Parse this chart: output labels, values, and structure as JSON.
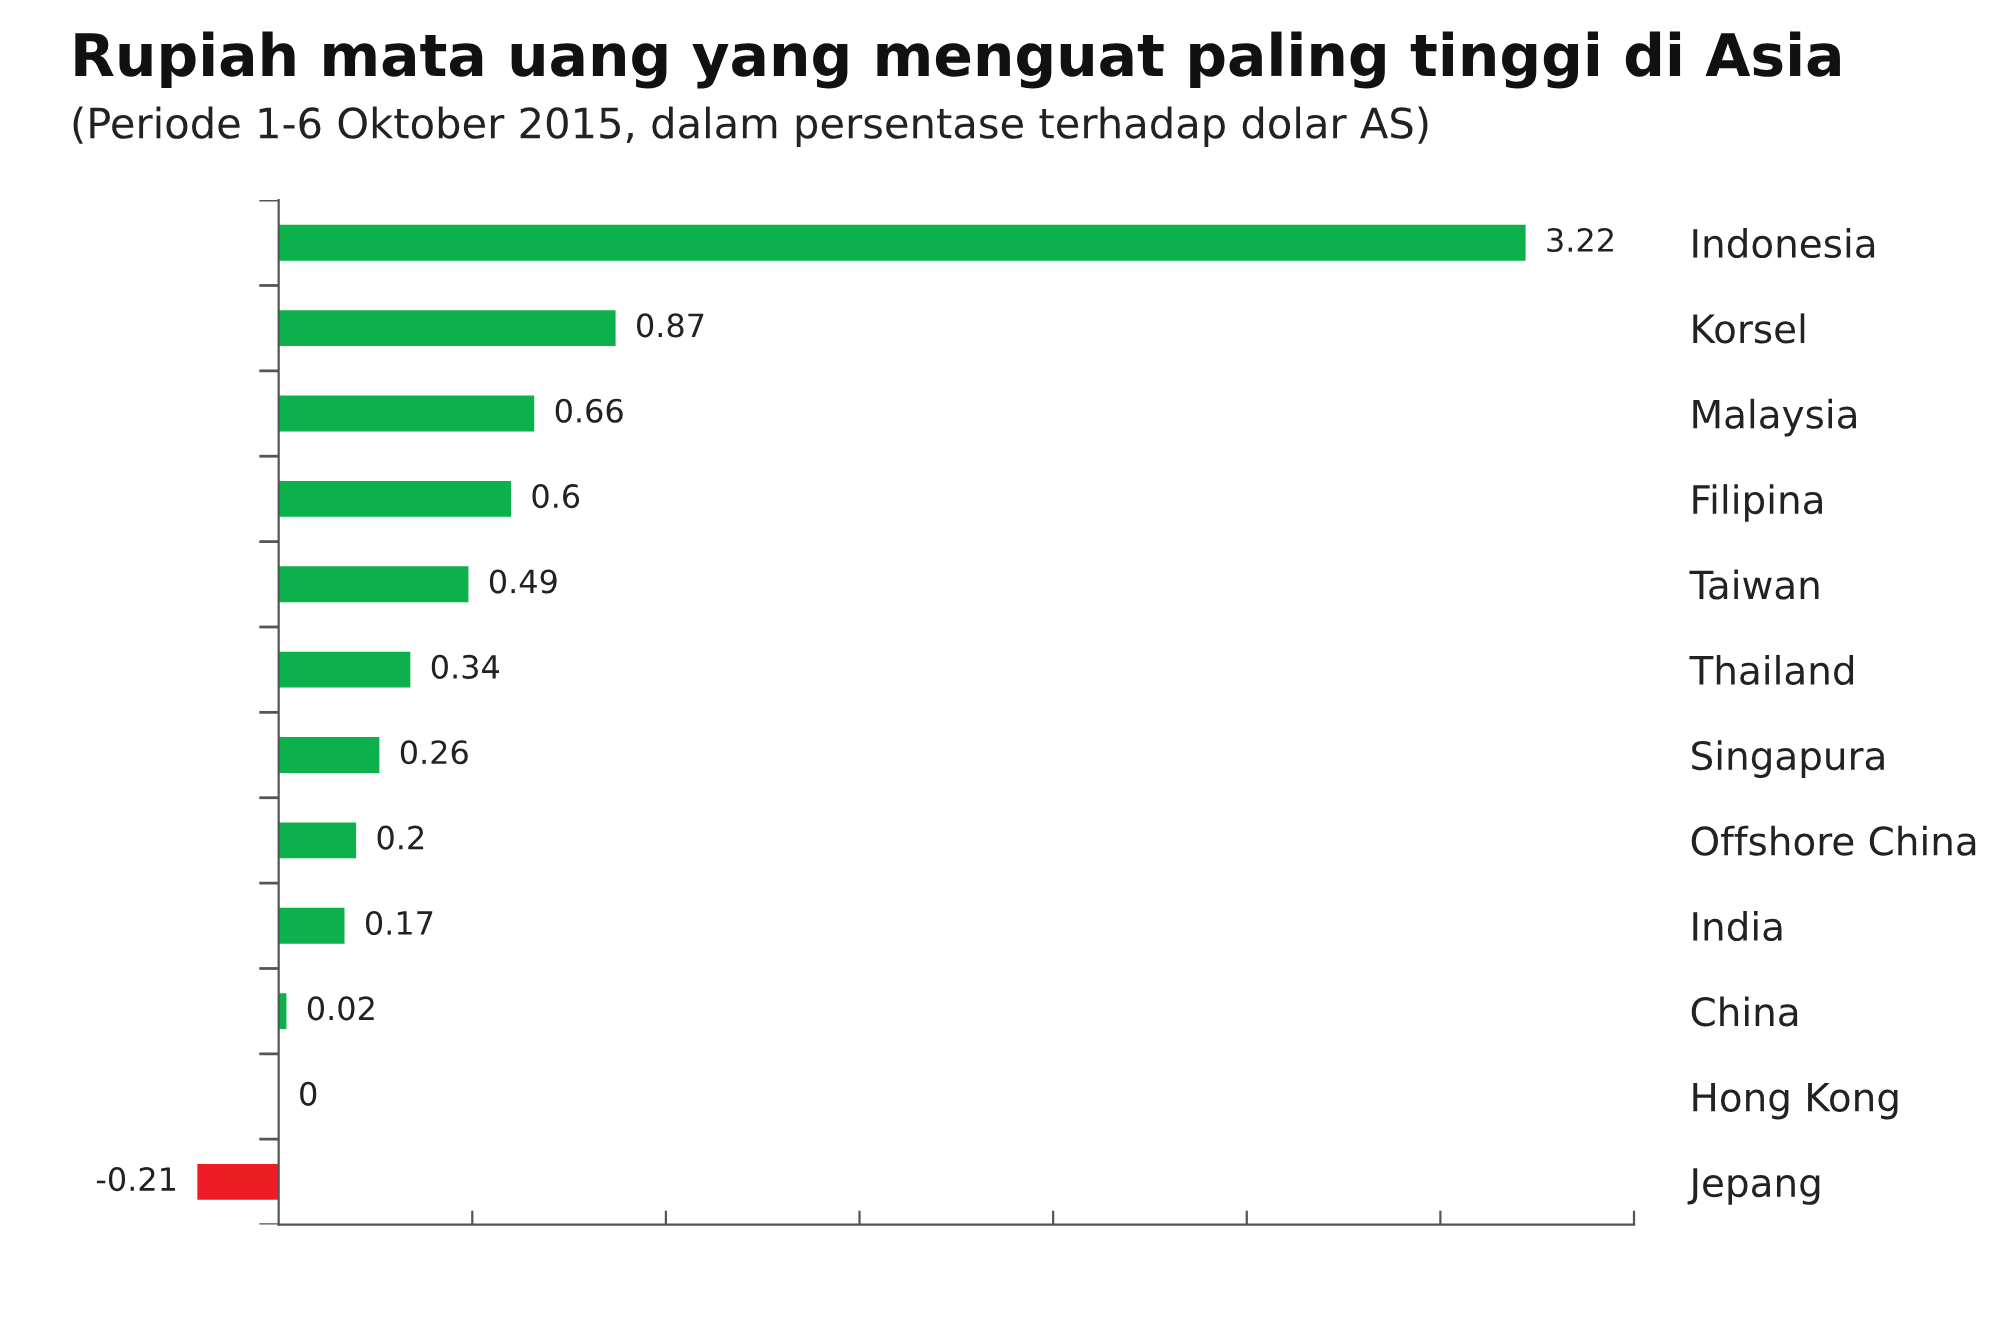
{
  "chart_data": {
    "type": "bar",
    "orientation": "horizontal",
    "title": "Rupiah mata uang yang menguat paling tinggi di Asia",
    "subtitle": "(Periode 1-6 Oktober 2015, dalam persentase terhadap dolar AS)",
    "categories": [
      "Indonesia",
      "Korsel",
      "Malaysia",
      "Filipina",
      "Taiwan",
      "Thailand",
      "Singapura",
      "Offshore China",
      "India",
      "China",
      "Hong Kong",
      "Jepang"
    ],
    "values": [
      3.22,
      0.87,
      0.66,
      0.6,
      0.49,
      0.34,
      0.26,
      0.2,
      0.17,
      0.02,
      0,
      -0.21
    ],
    "colors": [
      "#0db14b",
      "#0db14b",
      "#0db14b",
      "#0db14b",
      "#0db14b",
      "#0db14b",
      "#0db14b",
      "#0db14b",
      "#0db14b",
      "#0db14b",
      "#0db14b",
      "#ee1c25"
    ],
    "xticks": [
      {
        "value": 0.5,
        "label": null
      },
      {
        "value": 1.0,
        "label": null
      },
      {
        "value": 1.5,
        "label": null
      },
      {
        "value": 2.0,
        "label": null
      },
      {
        "value": 2.5,
        "label": null
      },
      {
        "value": 3.0,
        "label": null
      },
      {
        "value": 3.5,
        "label": null
      }
    ],
    "tick_labels": "y",
    "data_labels": true,
    "grid": false,
    "legend": false
  }
}
